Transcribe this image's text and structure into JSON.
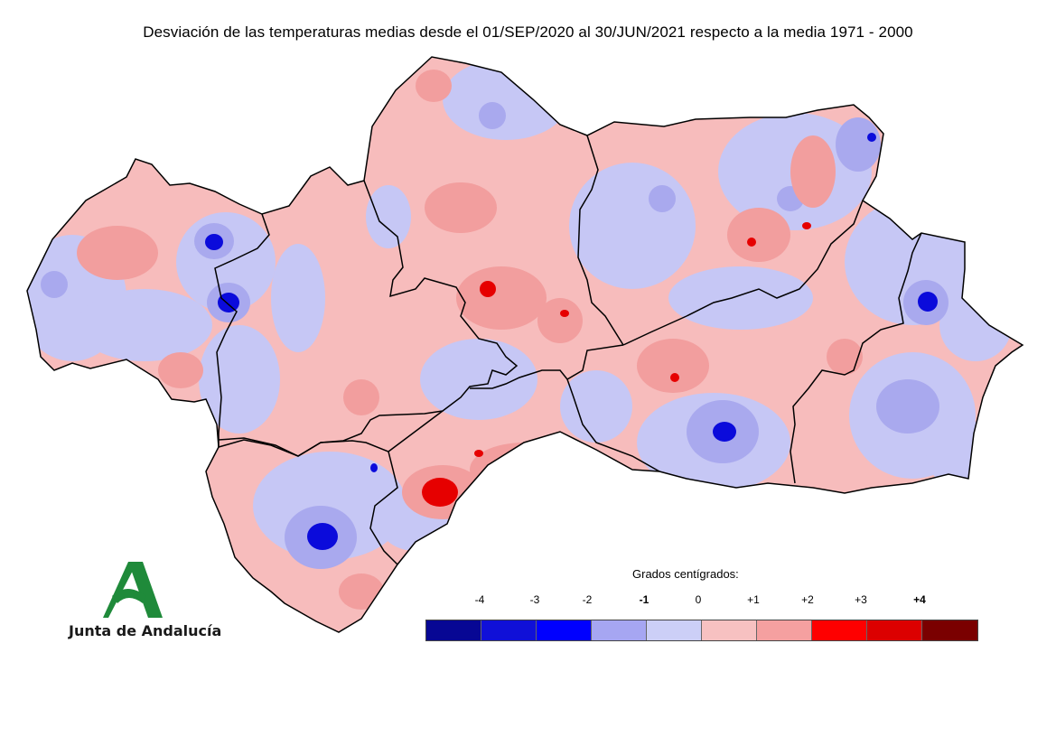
{
  "title": "Desviación de las temperaturas medias desde el 01/SEP/2020 al 30/JUN/2021 respecto a la media 1971 - 2000",
  "logo": {
    "text": "Junta de Andalucía",
    "color": "#1f8a3a"
  },
  "legend": {
    "title": "Grados centígrados:",
    "ticks": [
      "-4",
      "-3",
      "-2",
      "-1",
      "0",
      "+1",
      "+2",
      "+3",
      "+4"
    ],
    "bold_ticks": [
      "-1",
      "+4"
    ],
    "classes": [
      "#070794",
      "#1010d8",
      "#0000ff",
      "#a6a6f2",
      "#cccff7",
      "#f7c1c1",
      "#f5a0a0",
      "#fe0000",
      "#dc0000",
      "#7a0000"
    ]
  },
  "map": {
    "colors": {
      "warm_light": "#f7b8b8",
      "warm_mid": "#f29b9b",
      "cool_light": "#c8c8f5",
      "cool_mid": "#a8a8ee",
      "hot": "#e80000",
      "cold": "#0a0ad8",
      "border": "#000000"
    }
  }
}
